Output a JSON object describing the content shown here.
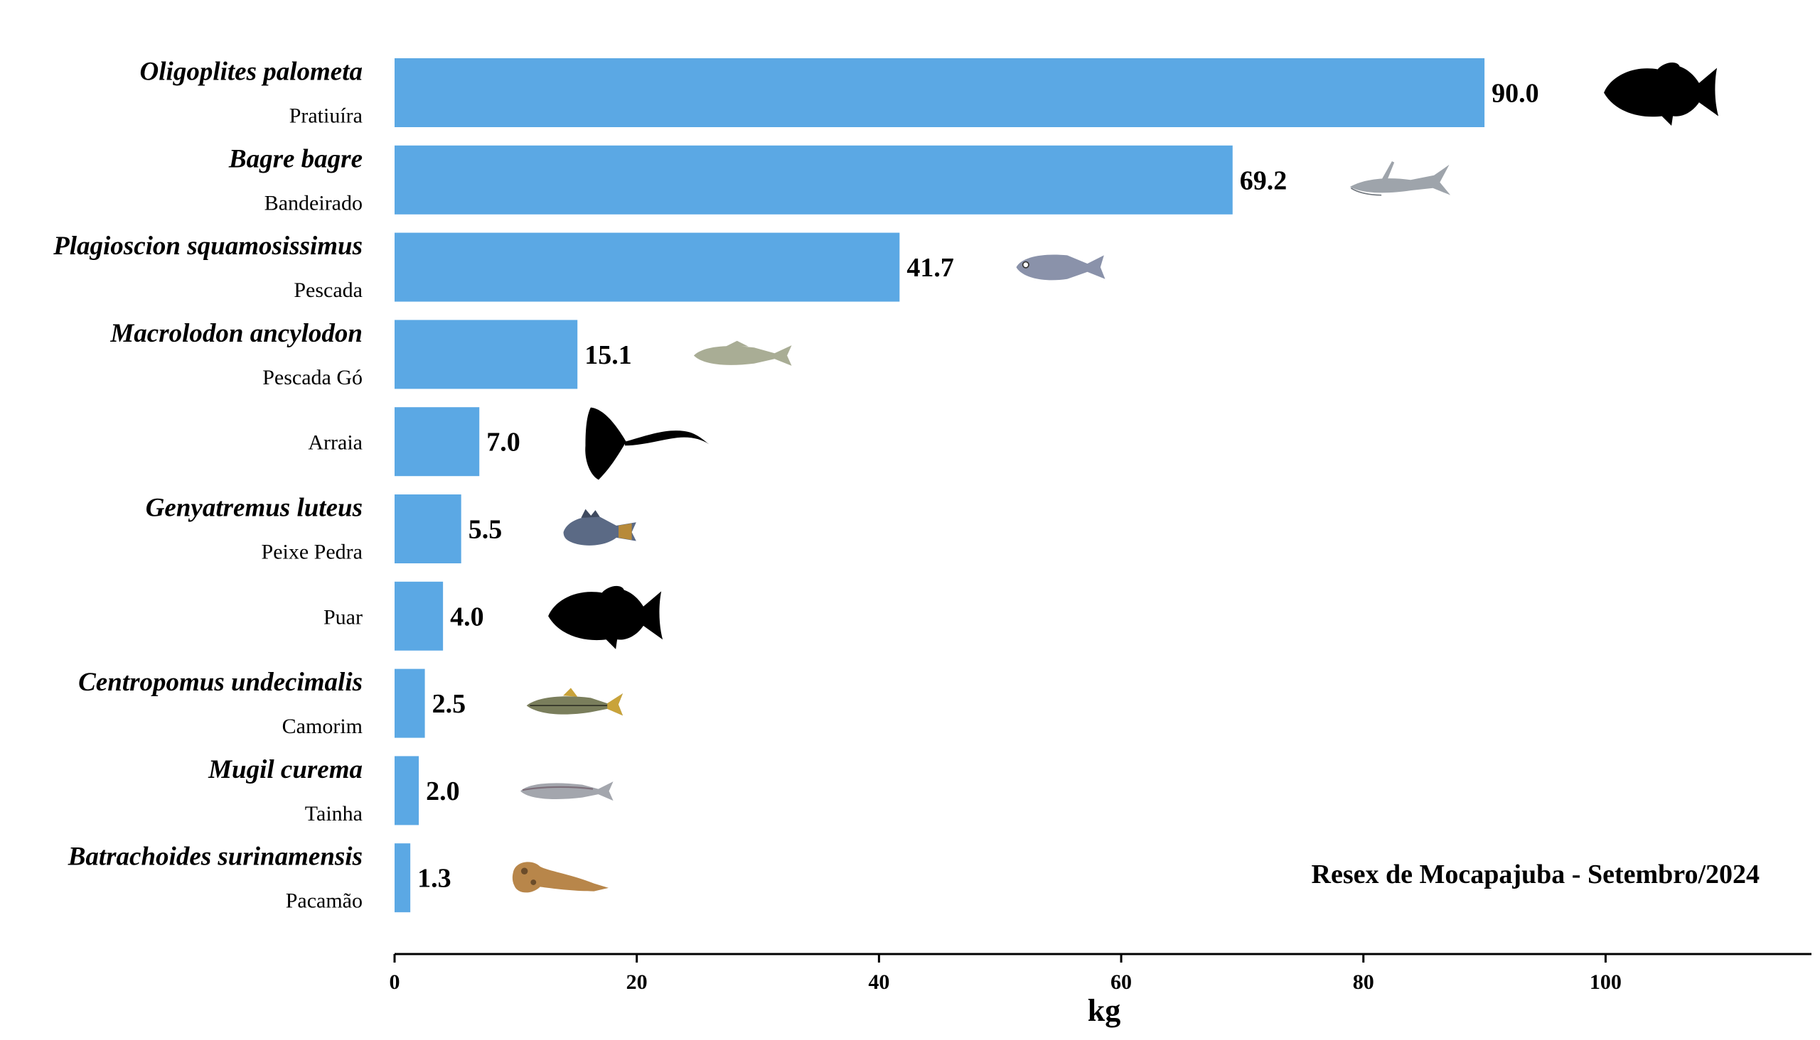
{
  "chart_data": {
    "type": "bar",
    "orientation": "horizontal",
    "categories": [
      {
        "species": "Oligoplites palometa",
        "common": "Pratiuíra",
        "icon": "fish-silhouette-icon"
      },
      {
        "species": "Bagre bagre",
        "common": "Bandeirado",
        "icon": "catfish-icon"
      },
      {
        "species": "Plagioscion squamosissimus",
        "common": "Pescada",
        "icon": "drum-fish-icon"
      },
      {
        "species": "Macrolodon ancylodon",
        "common": "Pescada Gó",
        "icon": "weakfish-icon"
      },
      {
        "species": "",
        "common": "Arraia",
        "icon": "stingray-silhouette-icon"
      },
      {
        "species": "Genyatremus luteus",
        "common": "Peixe Pedra",
        "icon": "grunt-fish-icon"
      },
      {
        "species": "",
        "common": "Puar",
        "icon": "fish-silhouette-icon"
      },
      {
        "species": "Centropomus undecimalis",
        "common": "Camorim",
        "icon": "snook-icon"
      },
      {
        "species": "Mugil curema",
        "common": "Tainha",
        "icon": "mullet-icon"
      },
      {
        "species": "Batrachoides surinamensis",
        "common": "Pacamão",
        "icon": "toadfish-icon"
      }
    ],
    "values": [
      90.0,
      69.2,
      41.7,
      15.1,
      7.0,
      5.5,
      4.0,
      2.5,
      2.0,
      1.3
    ],
    "value_labels": [
      "90.0",
      "69.2",
      "41.7",
      "15.1",
      "7.0",
      "5.5",
      "4.0",
      "2.5",
      "2.0",
      "1.3"
    ],
    "xlabel": "kg",
    "xlim": [
      0,
      117
    ],
    "xticks": [
      0,
      20,
      40,
      60,
      80,
      100
    ],
    "annotation": "Resex de Mocapajuba - Setembro/2024",
    "annotation_position": "bottom-right",
    "grid": false,
    "bar_color": "#5ba8e4"
  }
}
